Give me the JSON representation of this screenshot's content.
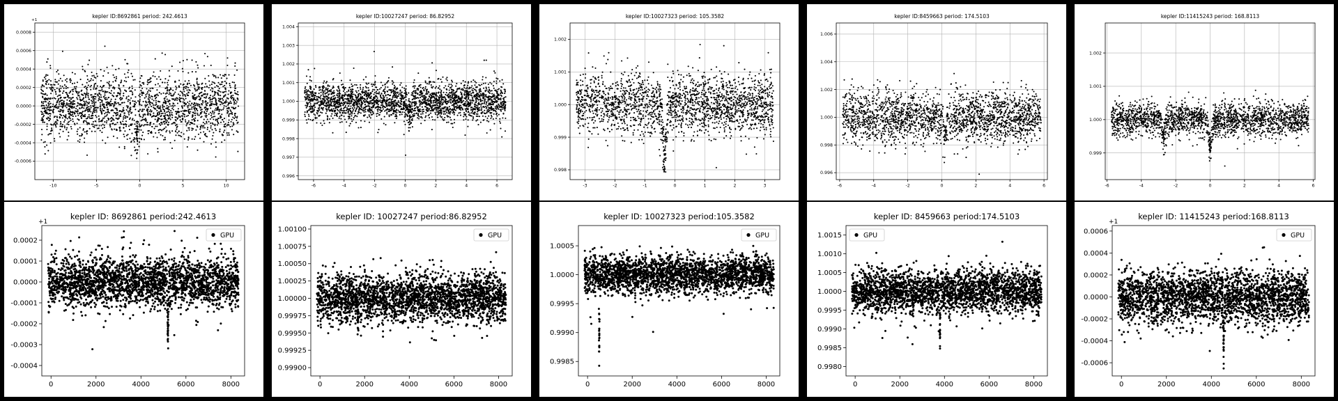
{
  "chart_data": [
    {
      "type": "scatter",
      "title": "kepler ID:8692861 period: 242.4613",
      "offset_label": "+1",
      "xlim": [
        -12.12,
        12.12
      ],
      "ylim": [
        -0.0008,
        0.0009
      ],
      "xticks": [
        -10,
        -5,
        0,
        5,
        10
      ],
      "yticks": [
        -0.0006,
        -0.0004,
        -0.0002,
        0.0,
        0.0002,
        0.0004,
        0.0006,
        0.0008
      ],
      "xtick_labels": [
        "-10",
        "-5",
        "0",
        "5",
        "10"
      ],
      "ytick_labels": [
        "-0.0006",
        "-0.0004",
        "-0.0002",
        "0.0000",
        "0.0002",
        "0.0004",
        "0.0006",
        "0.0008"
      ],
      "grid": true,
      "legend": null,
      "noise_sd": 0.00018,
      "n_points": 2200,
      "dips": [
        {
          "x": -0.3,
          "depth": 0.00035,
          "width": 0.25
        }
      ]
    },
    {
      "type": "scatter",
      "title": "kepler ID:10027247 period: 86.82952",
      "offset_label": "",
      "xlim": [
        -7,
        7
      ],
      "ylim": [
        0.9958,
        1.0042
      ],
      "xticks": [
        -6,
        -4,
        -2,
        0,
        2,
        4,
        6
      ],
      "yticks": [
        0.996,
        0.997,
        0.998,
        0.999,
        1.0,
        1.001,
        1.002,
        1.003,
        1.004
      ],
      "xtick_labels": [
        "-6",
        "-4",
        "-2",
        "0",
        "2",
        "4",
        "6"
      ],
      "ytick_labels": [
        "0.996",
        "0.997",
        "0.998",
        "0.999",
        "1.000",
        "1.001",
        "1.002",
        "1.003",
        "1.004"
      ],
      "grid": true,
      "legend": null,
      "noise_sd": 0.0005,
      "n_points": 2600,
      "dips": [
        {
          "x": 0.3,
          "depth": 0.0006,
          "width": 0.2
        }
      ]
    },
    {
      "type": "scatter",
      "title": "kepler ID:10027323 period: 105.3582",
      "offset_label": "",
      "xlim": [
        -3.5,
        3.5
      ],
      "ylim": [
        0.9977,
        1.0025
      ],
      "xticks": [
        -3,
        -2,
        -1,
        0,
        1,
        2,
        3
      ],
      "yticks": [
        0.998,
        0.999,
        1.0,
        1.001,
        1.002
      ],
      "xtick_labels": [
        "-3",
        "-2",
        "-1",
        "0",
        "1",
        "2",
        "3"
      ],
      "ytick_labels": [
        "0.998",
        "0.999",
        "1.000",
        "1.001",
        "1.002"
      ],
      "grid": true,
      "legend": null,
      "noise_sd": 0.00045,
      "n_points": 2200,
      "dips": [
        {
          "x": -0.35,
          "depth": 0.0017,
          "width": 0.08
        }
      ]
    },
    {
      "type": "scatter",
      "title": "kepler ID:8459663 period: 174.5103",
      "offset_label": "",
      "xlim": [
        -6.2,
        6.2
      ],
      "ylim": [
        0.9955,
        1.0068
      ],
      "xticks": [
        -6,
        -4,
        -2,
        0,
        2,
        4,
        6
      ],
      "yticks": [
        0.996,
        0.998,
        1.0,
        1.002,
        1.004,
        1.006
      ],
      "xtick_labels": [
        "-6",
        "-4",
        "-2",
        "0",
        "2",
        "4",
        "6"
      ],
      "ytick_labels": [
        "0.996",
        "0.998",
        "1.000",
        "1.002",
        "1.004",
        "1.006"
      ],
      "grid": true,
      "legend": null,
      "noise_sd": 0.0009,
      "n_points": 2200,
      "dips": [
        {
          "x": 0.2,
          "depth": 0.0016,
          "width": 0.12
        }
      ]
    },
    {
      "type": "scatter",
      "title": "kepler ID:11415243 period: 168.8113",
      "offset_label": "",
      "xlim": [
        -6.1,
        6.1
      ],
      "ylim": [
        0.9982,
        1.0029
      ],
      "xticks": [
        -6,
        -4,
        -2,
        0,
        2,
        4,
        6
      ],
      "yticks": [
        0.999,
        1.0,
        1.001,
        1.002
      ],
      "xtick_labels": [
        "-6",
        "-4",
        "-2",
        "0",
        "2",
        "4",
        "6"
      ],
      "ytick_labels": [
        "0.999",
        "1.000",
        "1.001",
        "1.002"
      ],
      "grid": true,
      "legend": null,
      "noise_sd": 0.00025,
      "n_points": 2200,
      "dips": [
        {
          "x": 0.0,
          "depth": 0.0009,
          "width": 0.12
        },
        {
          "x": -2.7,
          "depth": 0.0006,
          "width": 0.1
        }
      ]
    },
    {
      "type": "scatter",
      "title": "kepler ID: 8692861 period:242.4613",
      "offset_label": "+1",
      "xlim": [
        -410,
        8610
      ],
      "ylim": [
        -0.00045,
        0.00027
      ],
      "xticks": [
        0,
        2000,
        4000,
        6000,
        8000
      ],
      "yticks": [
        -0.0004,
        -0.0003,
        -0.0002,
        -0.0001,
        0.0,
        0.0001,
        0.0002
      ],
      "xtick_labels": [
        "0",
        "2000",
        "4000",
        "6000",
        "8000"
      ],
      "ytick_labels": [
        "-0.0004",
        "-0.0003",
        "-0.0002",
        "-0.0001",
        "0.0000",
        "0.0001",
        "0.0002"
      ],
      "grid": false,
      "legend": {
        "label": "GPU",
        "loc": "upper right"
      },
      "noise_sd": 6e-05,
      "n_points": 2600,
      "dips": [
        {
          "x": 5200,
          "depth": 0.00028,
          "width": 25
        }
      ]
    },
    {
      "type": "scatter",
      "title": "kepler ID: 10027247 period:86.82952",
      "offset_label": "",
      "xlim": [
        -410,
        8610
      ],
      "ylim": [
        0.99888,
        1.00105
      ],
      "xticks": [
        0,
        2000,
        4000,
        6000,
        8000
      ],
      "yticks": [
        0.999,
        0.99925,
        0.9995,
        0.99975,
        1.0,
        1.00025,
        1.0005,
        1.00075,
        1.001
      ],
      "xtick_labels": [
        "0",
        "2000",
        "4000",
        "6000",
        "8000"
      ],
      "ytick_labels": [
        "0.99900",
        "0.99925",
        "0.99950",
        "0.99975",
        "1.00000",
        "1.00025",
        "1.00050",
        "1.00075",
        "1.00100"
      ],
      "grid": false,
      "legend": {
        "label": "GPU",
        "loc": "upper right"
      },
      "noise_sd": 0.00017,
      "n_points": 2600,
      "dips": [
        {
          "x": 1700,
          "depth": 0.00035,
          "width": 20
        }
      ]
    },
    {
      "type": "scatter",
      "title": "kepler ID: 10027323 period:105.3582",
      "offset_label": "",
      "xlim": [
        -410,
        8610
      ],
      "ylim": [
        0.99825,
        1.00085
      ],
      "xticks": [
        0,
        2000,
        4000,
        6000,
        8000
      ],
      "yticks": [
        0.9985,
        0.999,
        0.9995,
        1.0,
        1.0005
      ],
      "xtick_labels": [
        "0",
        "2000",
        "4000",
        "6000",
        "8000"
      ],
      "ytick_labels": [
        "0.9985",
        "0.9990",
        "0.9995",
        "1.0000",
        "1.0005"
      ],
      "grid": false,
      "legend": {
        "label": "GPU",
        "loc": "upper right"
      },
      "noise_sd": 0.00016,
      "n_points": 2600,
      "dips": [
        {
          "x": 520,
          "depth": 0.0013,
          "width": 15
        }
      ]
    },
    {
      "type": "scatter",
      "title": "kepler ID: 8459663 period:174.5103",
      "offset_label": "",
      "xlim": [
        -410,
        8610
      ],
      "ylim": [
        0.99775,
        1.00175
      ],
      "xticks": [
        0,
        2000,
        4000,
        6000,
        8000
      ],
      "yticks": [
        0.998,
        0.9985,
        0.999,
        0.9995,
        1.0,
        1.0005,
        1.001,
        1.0015
      ],
      "xtick_labels": [
        "0",
        "2000",
        "4000",
        "6000",
        "8000"
      ],
      "ytick_labels": [
        "0.9980",
        "0.9985",
        "0.9990",
        "0.9995",
        "1.0000",
        "1.0005",
        "1.0010",
        "1.0015"
      ],
      "grid": false,
      "legend": {
        "label": "GPU",
        "loc": "upper left"
      },
      "noise_sd": 0.00028,
      "n_points": 2600,
      "dips": [
        {
          "x": 3800,
          "depth": 0.0012,
          "width": 15
        }
      ]
    },
    {
      "type": "scatter",
      "title": "kepler ID: 11415243 period:168.8113",
      "offset_label": "+1",
      "xlim": [
        -410,
        8610
      ],
      "ylim": [
        -0.00072,
        0.00065
      ],
      "xticks": [
        0,
        2000,
        4000,
        6000,
        8000
      ],
      "yticks": [
        -0.0006,
        -0.0004,
        -0.0002,
        0.0,
        0.0002,
        0.0004,
        0.0006
      ],
      "xtick_labels": [
        "0",
        "2000",
        "4000",
        "6000",
        "8000"
      ],
      "ytick_labels": [
        "-0.0006",
        "-0.0004",
        "-0.0002",
        "0.0000",
        "0.0002",
        "0.0004",
        "0.0006"
      ],
      "grid": false,
      "legend": {
        "label": "GPU",
        "loc": "upper right"
      },
      "noise_sd": 0.00012,
      "n_points": 2600,
      "dips": [
        {
          "x": 4550,
          "depth": 0.00055,
          "width": 18
        }
      ]
    }
  ]
}
